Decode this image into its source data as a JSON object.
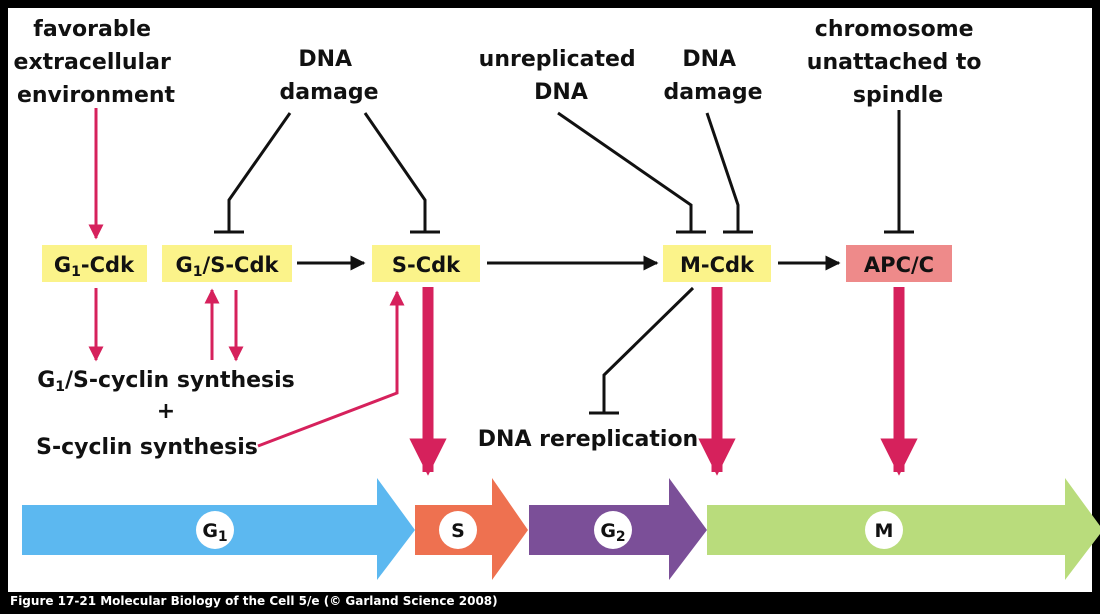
{
  "inputs": {
    "favorable_env": [
      "favorable",
      "extracellular",
      "environment"
    ],
    "dna_damage_g1": [
      "DNA",
      "damage"
    ],
    "unreplicated_dna": [
      "unreplicated",
      "DNA"
    ],
    "dna_damage_m": [
      "DNA",
      "damage"
    ],
    "chromosome_unattached": [
      "chromosome",
      "unattached to",
      "spindle"
    ]
  },
  "nodes": {
    "g1_cdk": {
      "base": "G",
      "sub": "1",
      "rest": "-Cdk",
      "color": "#fbf38a"
    },
    "g1s_cdk": {
      "base": "G",
      "sub": "1",
      "rest": "/S-Cdk",
      "color": "#fbf38a"
    },
    "s_cdk": {
      "label": "S-Cdk",
      "color": "#fbf38a"
    },
    "m_cdk": {
      "label": "M-Cdk",
      "color": "#fbf38a"
    },
    "apc_c": {
      "label": "APC/C",
      "color": "#ee8a8a"
    }
  },
  "outputs": {
    "g1s_cyclin": {
      "base": "G",
      "sub": "1",
      "rest": "/S-cyclin synthesis"
    },
    "plus": "+",
    "s_cyclin": "S-cyclin synthesis",
    "dna_rereplication": "DNA rereplication"
  },
  "phases": [
    {
      "key": "g1",
      "base": "G",
      "sub": "1",
      "color": "#5cb8f0"
    },
    {
      "key": "s",
      "base": "S",
      "sub": "",
      "color": "#ee7150"
    },
    {
      "key": "g2",
      "base": "G",
      "sub": "2",
      "color": "#7b4f98"
    },
    {
      "key": "m",
      "base": "M",
      "sub": "",
      "color": "#b9dc7c"
    }
  ],
  "colors": {
    "activation": "#d6215c",
    "inhibition": "#111111"
  },
  "caption": "Figure 17-21  Molecular Biology of the Cell 5/e (© Garland Science 2008)"
}
